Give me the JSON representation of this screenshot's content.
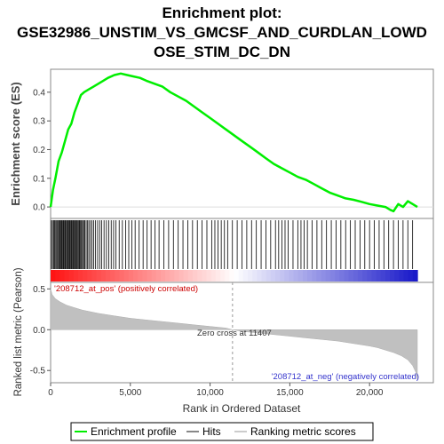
{
  "chart_data": {
    "type": "line",
    "title_lines": [
      "Enrichment plot:",
      "GSE32986_UNSTIM_VS_GMCSF_AND_CURDLAN_LOWD",
      "OSE_STIM_DC_DN"
    ],
    "top_panel": {
      "ylabel": "Enrichment score (ES)",
      "ylim": [
        -0.04,
        0.48
      ],
      "yticks": [
        "0.0",
        "0.1",
        "0.2",
        "0.3",
        "0.4"
      ],
      "series": [
        {
          "name": "Enrichment profile",
          "color": "#00ee00",
          "x": [
            0,
            150,
            300,
            500,
            700,
            900,
            1100,
            1300,
            1500,
            1700,
            1900,
            2100,
            2400,
            2700,
            3000,
            3300,
            3600,
            4000,
            4400,
            4800,
            5200,
            5600,
            6000,
            6500,
            7000,
            7500,
            8000,
            8500,
            9000,
            9500,
            10000,
            10500,
            11000,
            11500,
            12000,
            12500,
            13000,
            13500,
            14000,
            14500,
            15000,
            15500,
            16000,
            16500,
            17000,
            17500,
            18000,
            18500,
            19000,
            19500,
            20000,
            20500,
            21000,
            21300,
            21500,
            21800,
            22100,
            22400,
            22700,
            23000
          ],
          "y": [
            0.0,
            0.06,
            0.1,
            0.16,
            0.19,
            0.23,
            0.27,
            0.29,
            0.33,
            0.36,
            0.39,
            0.4,
            0.41,
            0.42,
            0.43,
            0.44,
            0.45,
            0.46,
            0.465,
            0.46,
            0.455,
            0.45,
            0.44,
            0.43,
            0.42,
            0.4,
            0.385,
            0.37,
            0.35,
            0.33,
            0.31,
            0.29,
            0.27,
            0.25,
            0.23,
            0.21,
            0.19,
            0.17,
            0.15,
            0.135,
            0.12,
            0.105,
            0.095,
            0.08,
            0.065,
            0.05,
            0.04,
            0.03,
            0.025,
            0.018,
            0.01,
            0.005,
            0.0,
            -0.01,
            -0.015,
            0.01,
            0.0,
            0.02,
            0.01,
            0.0
          ]
        }
      ]
    },
    "hits_panel": {
      "label": "Hits",
      "color": "#000000",
      "hit_positions": [
        50,
        120,
        190,
        250,
        320,
        380,
        440,
        500,
        560,
        610,
        670,
        720,
        780,
        830,
        890,
        940,
        1000,
        1060,
        1110,
        1170,
        1220,
        1280,
        1330,
        1390,
        1440,
        1500,
        1550,
        1610,
        1660,
        1720,
        1780,
        1830,
        1890,
        1950,
        2010,
        2080,
        2150,
        2230,
        2320,
        2400,
        2500,
        2600,
        2700,
        2820,
        2950,
        3080,
        3200,
        3350,
        3500,
        3650,
        3800,
        3950,
        4100,
        4300,
        4500,
        4700,
        4900,
        5100,
        5300,
        5550,
        5800,
        6050,
        6300,
        6550,
        6800,
        7100,
        7400,
        7700,
        8000,
        8300,
        8600,
        8900,
        9200,
        9500,
        9800,
        10100,
        10300,
        10500,
        10700,
        10900,
        11100,
        11400,
        11700,
        12000,
        12300,
        12600,
        12900,
        13200,
        13500,
        13800,
        14100,
        14300,
        14500,
        14700,
        14900,
        15200,
        15500,
        15700,
        15900,
        16100,
        16400,
        16700,
        17000,
        17300,
        17600,
        17900,
        18200,
        18500,
        18800,
        19100,
        19400,
        19700,
        20000,
        20300,
        20600,
        20900,
        21200,
        21500,
        21800,
        22100,
        22400,
        22700
      ]
    },
    "rank_panel": {
      "label": "Ranking metric scores",
      "ylabel": "Ranked list metric (Pearson)",
      "xlabel": "Rank in Ordered Dataset",
      "xlim": [
        0,
        24000
      ],
      "ylim": [
        -0.65,
        0.58
      ],
      "xticks": [
        "0",
        "5,000",
        "10,000",
        "15,000",
        "20,000"
      ],
      "xtick_values": [
        0,
        5000,
        10000,
        15000,
        20000
      ],
      "yticks": [
        "0.5",
        "0.0",
        "-0.5"
      ],
      "ytick_values": [
        0.5,
        0.0,
        -0.5
      ],
      "zero_cross_label": "Zero cross at 11407",
      "zero_cross": 11407,
      "metric_x": [
        0,
        100,
        300,
        600,
        1000,
        1500,
        2000,
        3000,
        4000,
        5000,
        6000,
        7000,
        8000,
        9000,
        10000,
        11000,
        11407,
        12000,
        13000,
        14000,
        15000,
        16000,
        17000,
        18000,
        19000,
        20000,
        20500,
        21000,
        21500,
        22000,
        22400,
        22700,
        22900,
        23000
      ],
      "metric_y": [
        0.5,
        0.43,
        0.38,
        0.34,
        0.3,
        0.27,
        0.24,
        0.2,
        0.17,
        0.14,
        0.12,
        0.1,
        0.08,
        0.06,
        0.04,
        0.02,
        0.0,
        -0.02,
        -0.04,
        -0.06,
        -0.08,
        -0.1,
        -0.12,
        -0.14,
        -0.17,
        -0.2,
        -0.22,
        -0.25,
        -0.28,
        -0.32,
        -0.37,
        -0.44,
        -0.52,
        -0.62
      ],
      "pos_label": "'208712_at_pos' (positively correlated)",
      "neg_label": "'208712_at_neg' (negatively correlated)",
      "pos_color": "#dd0000",
      "neg_color": "#0000cc"
    },
    "legend": [
      {
        "label": "Enrichment profile",
        "color": "#00ee00"
      },
      {
        "label": "Hits",
        "color": "#888888"
      },
      {
        "label": "Ranking metric scores",
        "color": "#cccccc"
      }
    ]
  }
}
